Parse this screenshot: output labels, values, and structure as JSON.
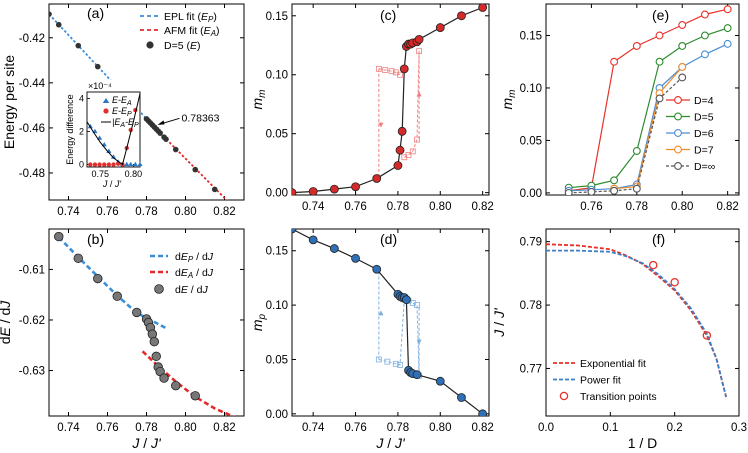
{
  "chart_data": [
    {
      "id": "a",
      "panel_label": "(a)",
      "type": "line",
      "xlabel": "",
      "ylabel": "Energy per site",
      "xlim": [
        0.73,
        0.83
      ],
      "ylim": [
        -0.492,
        -0.405
      ],
      "xticks": [
        0.74,
        0.76,
        0.78,
        0.8,
        0.82
      ],
      "xticklabels": [
        "0.74",
        "0.76",
        "0.78",
        "0.80",
        "0.82"
      ],
      "yticks": [
        -0.42,
        -0.44,
        -0.46,
        -0.48
      ],
      "yticklabels": [
        "-0.42",
        "-0.44",
        "-0.46",
        "-0.48"
      ],
      "series": [
        {
          "name": "EPL fit (E_P)",
          "style": "dashed",
          "color": "#3b8fd9",
          "x": [
            0.73,
            0.7836
          ],
          "y": [
            -0.4095,
            -0.4593
          ]
        },
        {
          "name": "AFM fit (E_A)",
          "style": "dashed",
          "color": "#e32a2a",
          "x": [
            0.7836,
            0.83
          ],
          "y": [
            -0.4593,
            -0.4998
          ]
        },
        {
          "name": "D=5 (E)",
          "style": "marker",
          "color": "#333333",
          "x": [
            0.73,
            0.735,
            0.745,
            0.755,
            0.765,
            0.775,
            0.78,
            0.781,
            0.782,
            0.783,
            0.784,
            0.785,
            0.786,
            0.787,
            0.789,
            0.79,
            0.795,
            0.805,
            0.815,
            0.825
          ],
          "y": [
            -0.4095,
            -0.4142,
            -0.4235,
            -0.4328,
            -0.442,
            -0.4513,
            -0.456,
            -0.4569,
            -0.4578,
            -0.4587,
            -0.4596,
            -0.4605,
            -0.4614,
            -0.4623,
            -0.4641,
            -0.465,
            -0.4696,
            -0.4785,
            -0.4873,
            -0.496
          ]
        }
      ],
      "annotation": "0.78363",
      "inset": {
        "xlabel": "J / J'",
        "ylabel": "Energy difference",
        "multiplier": "×10⁻⁴",
        "xlim": [
          0.73,
          0.81
        ],
        "ylim": [
          -0.15,
          4.4
        ],
        "xticks": [
          0.75,
          0.8
        ],
        "xticklabels": [
          "0.75",
          "0.80"
        ],
        "yticks": [
          0,
          2,
          4
        ],
        "yticklabels": [
          "0",
          "2",
          "4"
        ],
        "series": [
          {
            "name": "E-E_A",
            "color": "#2a78c9",
            "marker": "triangle",
            "x": [
              0.735,
              0.742,
              0.749,
              0.756,
              0.763,
              0.77,
              0.777,
              0.7836,
              0.79,
              0.796,
              0.803,
              0.81
            ],
            "y": [
              2.3,
              2.0,
              1.6,
              1.2,
              0.8,
              0.45,
              0.15,
              0,
              0,
              0,
              0,
              0
            ]
          },
          {
            "name": "E-E_P",
            "color": "#e03030",
            "marker": "circle",
            "x": [
              0.735,
              0.742,
              0.749,
              0.756,
              0.763,
              0.77,
              0.777,
              0.7836,
              0.79,
              0.796,
              0.803
            ],
            "y": [
              0,
              0,
              0,
              0,
              0,
              0,
              0.05,
              0,
              1.0,
              2.1,
              3.3
            ]
          },
          {
            "name": "|E_A-E_P|",
            "color": "#000000",
            "marker": "line",
            "x": [
              0.73,
              0.74,
              0.75,
              0.76,
              0.77,
              0.7836,
              0.79,
              0.8,
              0.81
            ],
            "y": [
              2.6,
              1.95,
              1.35,
              0.85,
              0.4,
              0.0,
              1.0,
              2.6,
              4.3
            ]
          }
        ]
      }
    },
    {
      "id": "b",
      "panel_label": "(b)",
      "type": "line",
      "xlabel": "J / J'",
      "ylabel": "dE / dJ",
      "xlim": [
        0.73,
        0.83
      ],
      "ylim": [
        -0.639,
        -0.602
      ],
      "xticks": [
        0.74,
        0.76,
        0.78,
        0.8,
        0.82
      ],
      "xticklabels": [
        "0.74",
        "0.76",
        "0.78",
        "0.80",
        "0.82"
      ],
      "yticks": [
        -0.61,
        -0.62,
        -0.63
      ],
      "yticklabels": [
        "-0.61",
        "-0.62",
        "-0.63"
      ],
      "series": [
        {
          "name": "dE_P / dJ",
          "style": "dashed",
          "color": "#3b8fd9",
          "x": [
            0.735,
            0.745,
            0.755,
            0.765,
            0.775,
            0.785,
            0.79
          ],
          "y": [
            -0.6036,
            -0.6076,
            -0.6114,
            -0.6152,
            -0.6186,
            -0.6206,
            -0.6216
          ]
        },
        {
          "name": "dE_A / dJ",
          "style": "dashed",
          "color": "#e32a2a",
          "x": [
            0.778,
            0.785,
            0.795,
            0.805,
            0.815,
            0.825,
            0.83
          ],
          "y": [
            -0.6262,
            -0.6288,
            -0.6322,
            -0.6352,
            -0.6375,
            -0.6392,
            -0.6398
          ]
        },
        {
          "name": "dE / dJ",
          "style": "marker",
          "color": "#777777",
          "x": [
            0.735,
            0.745,
            0.755,
            0.765,
            0.775,
            0.78,
            0.781,
            0.782,
            0.783,
            0.784,
            0.785,
            0.786,
            0.787,
            0.789,
            0.795,
            0.805
          ],
          "y": [
            -0.6035,
            -0.6078,
            -0.6118,
            -0.6153,
            -0.6185,
            -0.6198,
            -0.6205,
            -0.6215,
            -0.6228,
            -0.6243,
            -0.6272,
            -0.6293,
            -0.6302,
            -0.6315,
            -0.633,
            -0.635
          ]
        }
      ]
    },
    {
      "id": "c",
      "panel_label": "(c)",
      "type": "line",
      "xlabel": "",
      "ylabel": "m_m",
      "xlim": [
        0.73,
        0.823
      ],
      "ylim": [
        -0.002,
        0.16
      ],
      "xticks": [
        0.74,
        0.76,
        0.78,
        0.8,
        0.82
      ],
      "xticklabels": [
        "0.74",
        "0.76",
        "0.78",
        "0.80",
        "0.82"
      ],
      "yticks": [
        0.0,
        0.05,
        0.1,
        0.15
      ],
      "yticklabels": [
        "0.00",
        "0.05",
        "0.10",
        "0.15"
      ],
      "series": [
        {
          "name": "main",
          "color": "#c02020",
          "style": "marker-line",
          "x": [
            0.73,
            0.74,
            0.75,
            0.76,
            0.77,
            0.78,
            0.781,
            0.782,
            0.783,
            0.784,
            0.785,
            0.786,
            0.787,
            0.789,
            0.79,
            0.8,
            0.81,
            0.82
          ],
          "y": [
            0.0,
            0.001,
            0.003,
            0.005,
            0.012,
            0.023,
            0.036,
            0.052,
            0.105,
            0.124,
            0.126,
            0.126,
            0.127,
            0.128,
            0.13,
            0.14,
            0.15,
            0.157
          ]
        },
        {
          "name": "hysteresis",
          "color": "#f08080",
          "style": "dashed",
          "x": [
            0.771,
            0.774,
            0.777,
            0.779,
            0.781,
            0.783,
            0.785,
            0.787,
            0.789,
            0.79
          ],
          "y": [
            0.105,
            0.104,
            0.103,
            0.102,
            0.1,
            0.03,
            0.032,
            0.035,
            0.045,
            0.12
          ]
        }
      ]
    },
    {
      "id": "d",
      "panel_label": "(d)",
      "type": "line",
      "xlabel": "J / J'",
      "ylabel": "m_p",
      "xlim": [
        0.73,
        0.823
      ],
      "ylim": [
        -0.002,
        0.17
      ],
      "xticks": [
        0.74,
        0.76,
        0.78,
        0.8,
        0.82
      ],
      "xticklabels": [
        "0.74",
        "0.76",
        "0.78",
        "0.80",
        "0.82"
      ],
      "yticks": [
        0.0,
        0.05,
        0.1,
        0.15
      ],
      "yticklabels": [
        "0.00",
        "0.05",
        "0.10",
        "0.15"
      ],
      "series": [
        {
          "name": "main",
          "color": "#2f6fb6",
          "style": "marker-line",
          "x": [
            0.73,
            0.74,
            0.75,
            0.76,
            0.77,
            0.78,
            0.781,
            0.782,
            0.783,
            0.784,
            0.785,
            0.786,
            0.787,
            0.789,
            0.8,
            0.81,
            0.82
          ],
          "y": [
            0.17,
            0.16,
            0.152,
            0.143,
            0.133,
            0.11,
            0.108,
            0.107,
            0.107,
            0.105,
            0.04,
            0.038,
            0.037,
            0.036,
            0.03,
            0.015,
            0.0
          ]
        },
        {
          "name": "hysteresis",
          "color": "#7fb0e0",
          "style": "dashed",
          "x": [
            0.771,
            0.775,
            0.779,
            0.781,
            0.783,
            0.785,
            0.787,
            0.789,
            0.79
          ],
          "y": [
            0.05,
            0.048,
            0.046,
            0.045,
            0.105,
            0.104,
            0.102,
            0.1,
            0.035
          ]
        }
      ]
    },
    {
      "id": "e",
      "panel_label": "(e)",
      "type": "line",
      "xlabel": "",
      "ylabel": "m_m",
      "xlim": [
        0.74,
        0.825
      ],
      "ylim": [
        -0.002,
        0.18
      ],
      "xticks": [
        0.76,
        0.78,
        0.8,
        0.82
      ],
      "xticklabels": [
        "0.76",
        "0.78",
        "0.80",
        "0.82"
      ],
      "yticks": [
        0.0,
        0.05,
        0.1,
        0.15
      ],
      "yticklabels": [
        "0.00",
        "0.05",
        "0.10",
        "0.15"
      ],
      "legend_position": "lower-right",
      "series": [
        {
          "name": "D=4",
          "color": "#e8302a",
          "dashed": false,
          "x": [
            0.75,
            0.76,
            0.77,
            0.78,
            0.79,
            0.8,
            0.81,
            0.82
          ],
          "y": [
            0.002,
            0.005,
            0.125,
            0.14,
            0.15,
            0.16,
            0.17,
            0.175
          ]
        },
        {
          "name": "D=5",
          "color": "#2e8b2e",
          "dashed": false,
          "x": [
            0.75,
            0.76,
            0.77,
            0.78,
            0.79,
            0.8,
            0.81,
            0.82
          ],
          "y": [
            0.005,
            0.007,
            0.012,
            0.04,
            0.125,
            0.14,
            0.15,
            0.157
          ]
        },
        {
          "name": "D=6",
          "color": "#4a8ed8",
          "dashed": false,
          "x": [
            0.75,
            0.76,
            0.77,
            0.78,
            0.79,
            0.8,
            0.81,
            0.82
          ],
          "y": [
            0.002,
            0.003,
            0.004,
            0.008,
            0.1,
            0.12,
            0.132,
            0.142
          ]
        },
        {
          "name": "D=7",
          "color": "#f28c28",
          "dashed": false,
          "x": [
            0.77,
            0.78,
            0.79,
            0.8
          ],
          "y": [
            0.004,
            0.006,
            0.095,
            0.12
          ]
        },
        {
          "name": "D=∞",
          "color": "#555555",
          "dashed": true,
          "x": [
            0.75,
            0.76,
            0.77,
            0.78,
            0.79,
            0.8
          ],
          "y": [
            0.0,
            0.001,
            0.002,
            0.004,
            0.09,
            0.11
          ]
        }
      ]
    },
    {
      "id": "f",
      "panel_label": "(f)",
      "type": "line",
      "xlabel": "1 / D",
      "ylabel": "J / J'",
      "xlim": [
        0.0,
        0.3
      ],
      "ylim": [
        0.7625,
        0.792
      ],
      "xticks": [
        0.0,
        0.1,
        0.2,
        0.3
      ],
      "xticklabels": [
        "0.0",
        "0.1",
        "0.2",
        "0.3"
      ],
      "yticks": [
        0.77,
        0.78,
        0.79
      ],
      "yticklabels": [
        "0.77",
        "0.78",
        "0.79"
      ],
      "series": [
        {
          "name": "Exponential fit",
          "color": "#e8302a",
          "dashed": true,
          "x": [
            0.0,
            0.05,
            0.1,
            0.125,
            0.15,
            0.175,
            0.2,
            0.225,
            0.25,
            0.265,
            0.28
          ],
          "y": [
            0.7896,
            0.7894,
            0.7888,
            0.7878,
            0.7865,
            0.7845,
            0.7823,
            0.7792,
            0.7752,
            0.7715,
            0.7655
          ]
        },
        {
          "name": "Power fit",
          "color": "#3b7fc4",
          "dashed": true,
          "x": [
            0.0,
            0.05,
            0.1,
            0.125,
            0.15,
            0.175,
            0.2,
            0.225,
            0.25,
            0.265,
            0.28
          ],
          "y": [
            0.7886,
            0.7886,
            0.7884,
            0.7877,
            0.7866,
            0.7848,
            0.7825,
            0.7795,
            0.7755,
            0.7715,
            0.7655
          ]
        },
        {
          "name": "Transition points",
          "color": "#e8302a",
          "marker": "open-circle",
          "x": [
            0.1667,
            0.2,
            0.25
          ],
          "y": [
            0.7863,
            0.7836,
            0.7752
          ]
        }
      ]
    }
  ],
  "legend_a": {
    "epl": "EPL fit (",
    "epl_sym": "E",
    "epl_sub": "P",
    "afm": "AFM fit (",
    "afm_sym": "E",
    "afm_sub": "A",
    "d5": "D=5 (",
    "d5_sym": "E"
  },
  "legend_b": {
    "p_pre": "d",
    "p_sym": "E",
    "p_sub": "P",
    "p_post": " / d",
    "p_j": "J",
    "a_pre": "d",
    "a_sym": "E",
    "a_sub": "A",
    "a_post": " / d",
    "a_j": "J",
    "e_pre": "d",
    "e_sym": "E",
    "e_post": " / d",
    "e_j": "J"
  },
  "inset_legend": {
    "l1": "E-E",
    "l1_sub": "A",
    "l2": "E-E",
    "l2_sub": "P",
    "l3": "|E",
    "l3_suba": "A",
    "l3_mid": "-E",
    "l3_subp": "P",
    "l3_end": "|"
  }
}
